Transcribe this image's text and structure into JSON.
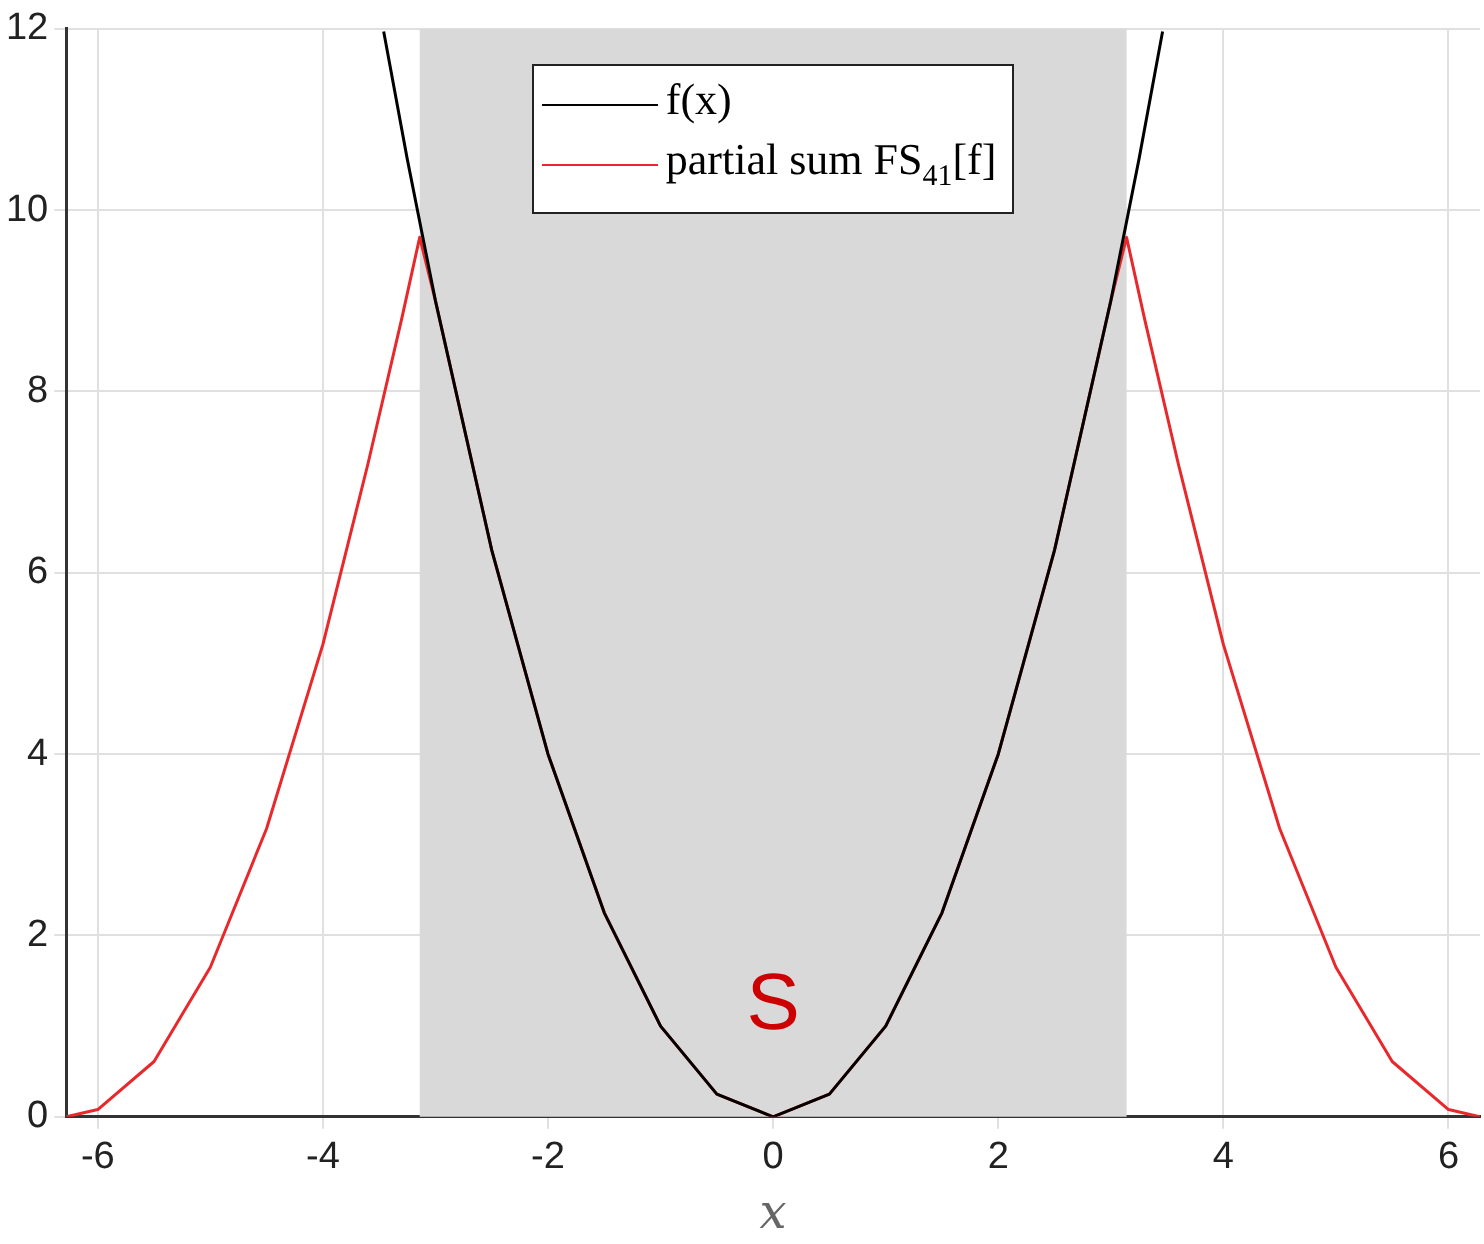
{
  "chart_data": {
    "type": "line",
    "xlabel": "x",
    "xlim": [
      -6.28,
      6.28
    ],
    "ylim": [
      0,
      12
    ],
    "xticks": [
      -6,
      -4,
      -2,
      0,
      2,
      4,
      6
    ],
    "yticks": [
      0,
      2,
      4,
      6,
      8,
      10,
      12
    ],
    "grid": true,
    "legend": "top",
    "marker": "none",
    "line_style": "solid",
    "series": [
      {
        "name": "f(x)",
        "color": "#000000",
        "x": [
          -3.46,
          -3.25,
          -3,
          -2.5,
          -2,
          -1.5,
          -1,
          -0.5,
          0,
          0.5,
          1,
          1.5,
          2,
          2.5,
          3,
          3.25,
          3.46
        ],
        "values": [
          11.97,
          10.56,
          9,
          6.25,
          4,
          2.25,
          1,
          0.25,
          0,
          0.25,
          1,
          2.25,
          4,
          6.25,
          9,
          10.56,
          11.97
        ]
      },
      {
        "name": "partial sum FS$_{41}$[f]",
        "color": "#e8282b",
        "x": [
          -6.28,
          -6,
          -5.5,
          -5,
          -4.5,
          -4,
          -3.6,
          -3.3,
          -3.14,
          -3,
          -2.5,
          -2,
          -1.5,
          -1,
          -0.5,
          0,
          0.5,
          1,
          1.5,
          2,
          2.5,
          3,
          3.14,
          3.3,
          3.6,
          4,
          4.5,
          5,
          5.5,
          6,
          6.28
        ],
        "values": [
          0,
          0.08,
          0.61,
          1.65,
          3.18,
          5.21,
          7.2,
          8.8,
          9.7,
          9,
          6.25,
          4,
          2.25,
          1,
          0.25,
          0,
          0.25,
          1,
          2.25,
          4,
          6.25,
          9,
          9.7,
          8.8,
          7.2,
          5.21,
          3.18,
          1.65,
          0.61,
          0.08,
          0
        ]
      }
    ],
    "bands": [
      {
        "axis": "x",
        "from": -3.14,
        "to": 3.14,
        "color": "#d9d9d9"
      }
    ],
    "annotations": [
      "S"
    ]
  }
}
